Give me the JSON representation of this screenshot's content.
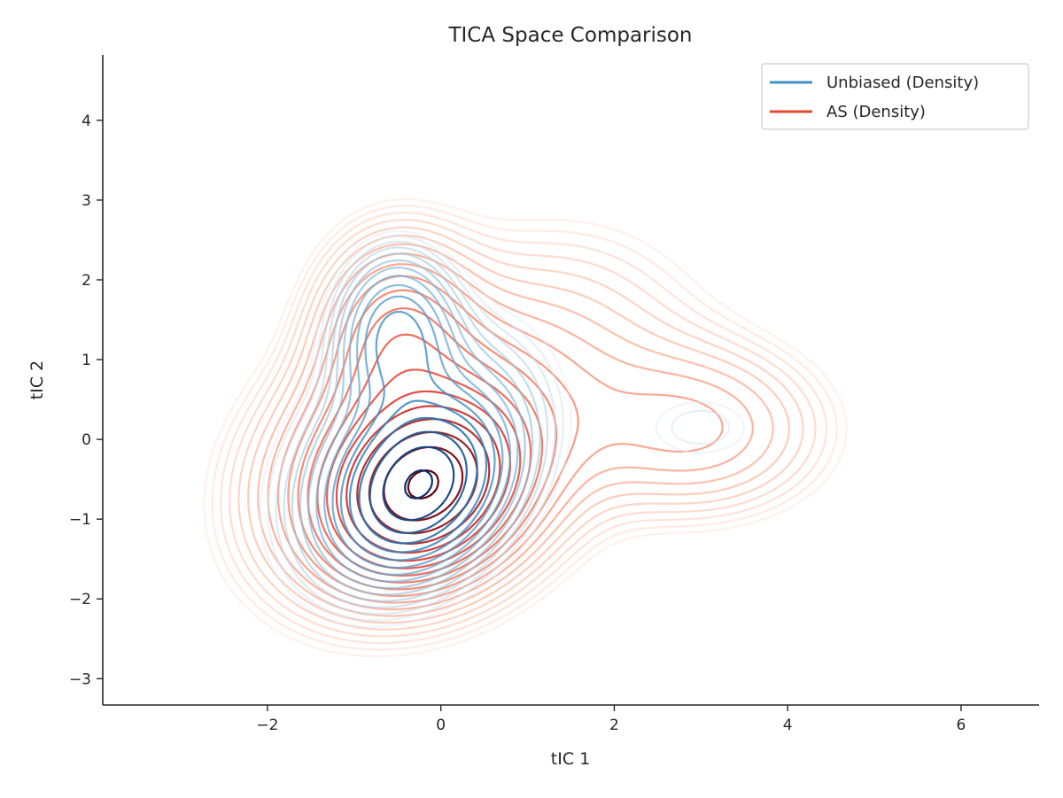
{
  "chart_data": {
    "type": "contour",
    "title": "TICA Space Comparison",
    "xlabel": "tIC 1",
    "ylabel": "tIC 2",
    "xlim": [
      -3.9,
      6.9
    ],
    "ylim": [
      -3.33,
      4.82
    ],
    "xticks": [
      -2,
      0,
      2,
      4,
      6
    ],
    "yticks": [
      -3,
      -2,
      -1,
      0,
      1,
      2,
      3,
      4
    ],
    "grid": false,
    "legend_position": "upper right",
    "series": [
      {
        "name": "Unbiased (Density)",
        "color": "#4292c6",
        "colormap": "Blues",
        "centers": [
          [
            -0.25,
            -0.6
          ],
          [
            -0.5,
            1.3
          ],
          [
            3.0,
            0.15
          ]
        ]
      },
      {
        "name": "AS (Density)",
        "color": "#e34a33",
        "colormap": "Reds",
        "centers": [
          [
            -0.2,
            -0.6
          ],
          [
            -0.5,
            1.3
          ],
          [
            2.95,
            0.12
          ]
        ]
      }
    ]
  }
}
